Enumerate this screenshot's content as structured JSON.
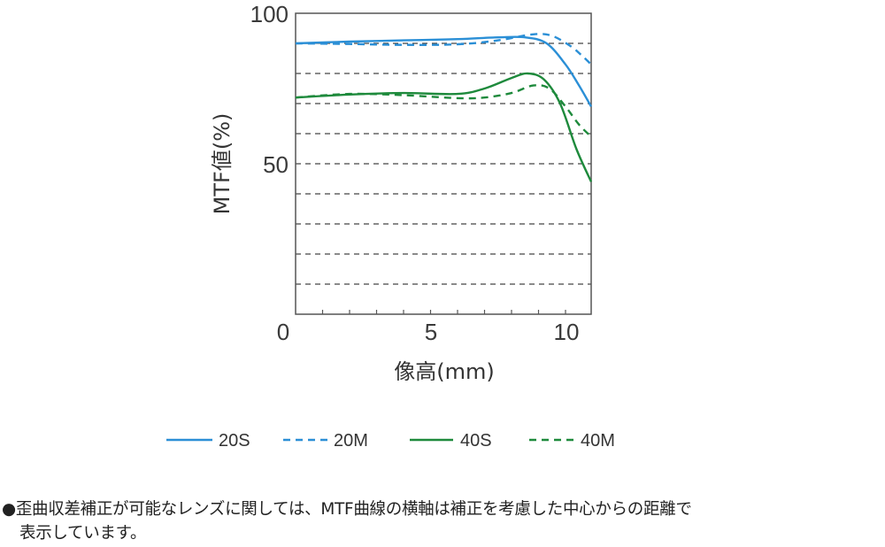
{
  "chart_data": {
    "type": "line",
    "title": "",
    "xlabel": "像高(mm)",
    "ylabel": "MTF値(%)",
    "xlim": [
      0,
      11
    ],
    "ylim": [
      0,
      100
    ],
    "x_ticks": [
      0,
      5,
      10
    ],
    "x_minor_ticks": [
      1,
      2,
      3,
      4,
      6,
      7,
      8,
      9
    ],
    "y_ticks": [
      50,
      100
    ],
    "y_gridlines": [
      10,
      20,
      30,
      40,
      50,
      60,
      70,
      80,
      90
    ],
    "grid": "horizontal dashed",
    "legend_position": "bottom",
    "series": [
      {
        "name": "20S",
        "style": "solid",
        "color": "#2b8fd6",
        "x": [
          0,
          2,
          4,
          6,
          7.5,
          8.5,
          9.3,
          10,
          10.5,
          10.95
        ],
        "values": [
          90,
          90.6,
          91,
          91.4,
          92,
          92,
          90,
          83,
          76,
          69
        ]
      },
      {
        "name": "20M",
        "style": "dashed",
        "color": "#2b8fd6",
        "x": [
          0,
          2,
          4,
          6,
          7.5,
          8.8,
          9.5,
          10.2,
          10.6,
          10.95
        ],
        "values": [
          90,
          89.8,
          89.5,
          89.7,
          91,
          93,
          92.5,
          89,
          86,
          83
        ]
      },
      {
        "name": "40S",
        "style": "solid",
        "color": "#1e8a3c",
        "x": [
          0,
          2,
          4,
          6,
          7,
          8,
          8.6,
          9.2,
          9.8,
          10.4,
          10.95
        ],
        "values": [
          72,
          73,
          73.5,
          73.2,
          75,
          78.5,
          80,
          78,
          70,
          55,
          44
        ]
      },
      {
        "name": "40M",
        "style": "dashed",
        "color": "#1e8a3c",
        "x": [
          0,
          2,
          4,
          6,
          7,
          8,
          8.8,
          9.4,
          10,
          10.5,
          10.95
        ],
        "values": [
          72,
          73.2,
          72.8,
          71.8,
          72,
          73.5,
          76,
          75,
          69,
          63,
          59
        ]
      }
    ]
  },
  "axes": {
    "y_tick_labels": [
      "100",
      "50"
    ],
    "x_tick_labels": [
      "0",
      "5",
      "10"
    ],
    "y_title": "MTF値(%)",
    "x_title": "像高(mm)"
  },
  "legend": [
    {
      "label": "20S"
    },
    {
      "label": "20M"
    },
    {
      "label": "40S"
    },
    {
      "label": "40M"
    }
  ],
  "note": {
    "line1": "●歪曲収差補正が可能なレンズに関しては、MTF曲線の横軸は補正を考慮した中心からの距離で",
    "line2": "表示しています。"
  }
}
